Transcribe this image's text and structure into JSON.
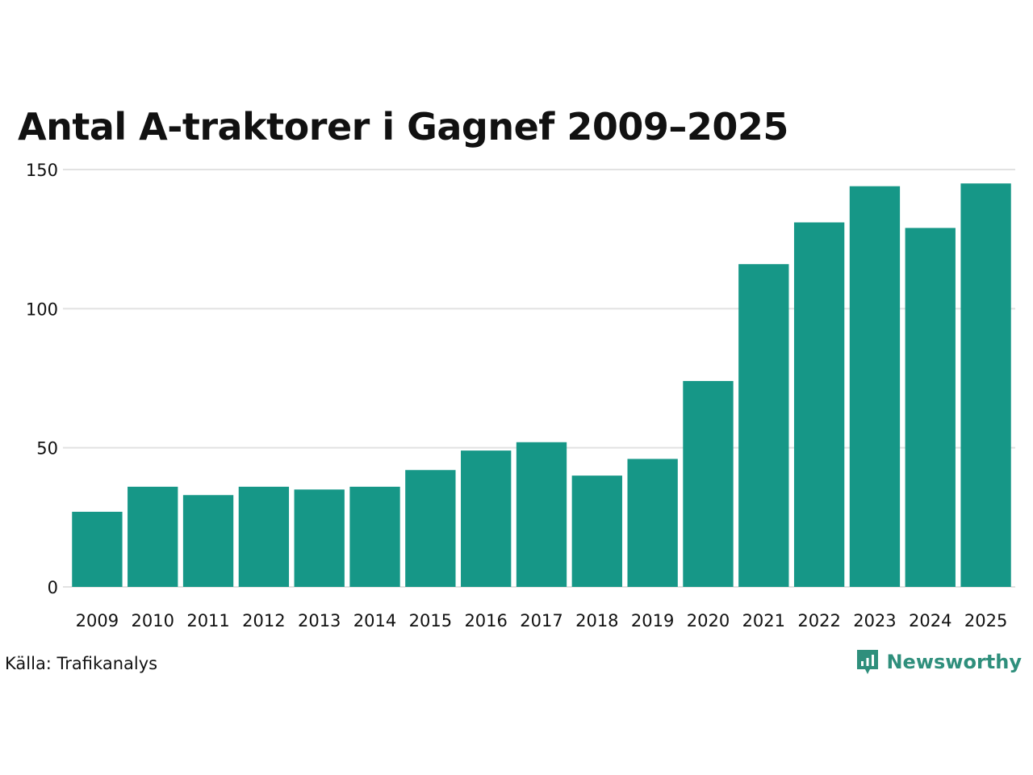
{
  "chart_data": {
    "type": "bar",
    "title": "Antal A-traktorer i Gagnef 2009–2025",
    "categories": [
      "2009",
      "2010",
      "2011",
      "2012",
      "2013",
      "2014",
      "2015",
      "2016",
      "2017",
      "2018",
      "2019",
      "2020",
      "2021",
      "2022",
      "2023",
      "2024",
      "2025"
    ],
    "values": [
      27,
      36,
      33,
      36,
      35,
      36,
      42,
      49,
      52,
      40,
      46,
      74,
      116,
      131,
      144,
      129,
      145
    ],
    "yticks": [
      "0",
      "50",
      "100",
      "150"
    ],
    "ylim": [
      0,
      150
    ],
    "grid": true,
    "bar_color": "#169787",
    "grid_color": "#e2e2e2",
    "xlabel": "",
    "ylabel": ""
  },
  "footer": {
    "source": "Källa: Trafikanalys",
    "brand": "Newsworthy",
    "brand_icon": "newsworthy-logo-icon",
    "brand_color": "#2f8f7c"
  }
}
